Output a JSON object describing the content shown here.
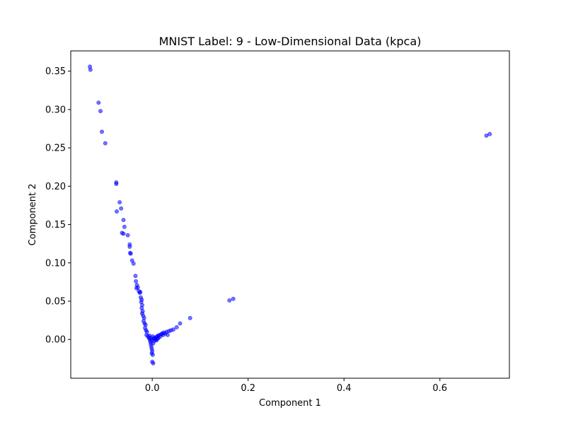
{
  "chart_data": {
    "type": "scatter",
    "title": "MNIST Label: 9 - Low-Dimensional Data (kpca)",
    "xlabel": "Component 1",
    "ylabel": "Component 2",
    "xlim": [
      -0.17,
      0.745
    ],
    "ylim": [
      -0.0505,
      0.3765
    ],
    "grid": false,
    "legend": "none",
    "x_ticks": [
      {
        "value": 0.0,
        "label": "0.0"
      },
      {
        "value": 0.2,
        "label": "0.2"
      },
      {
        "value": 0.4,
        "label": "0.4"
      },
      {
        "value": 0.6,
        "label": "0.6"
      }
    ],
    "y_ticks": [
      {
        "value": 0.0,
        "label": "0.00"
      },
      {
        "value": 0.05,
        "label": "0.05"
      },
      {
        "value": 0.1,
        "label": "0.10"
      },
      {
        "value": 0.15,
        "label": "0.15"
      },
      {
        "value": 0.2,
        "label": "0.20"
      },
      {
        "value": 0.25,
        "label": "0.25"
      },
      {
        "value": 0.3,
        "label": "0.30"
      },
      {
        "value": 0.35,
        "label": "0.35"
      }
    ],
    "point_color": "#0000ff",
    "point_alpha": 0.55,
    "series": [
      {
        "name": "points",
        "points": [
          [
            -0.13,
            0.356
          ],
          [
            -0.129,
            0.352
          ],
          [
            -0.112,
            0.309
          ],
          [
            -0.108,
            0.298
          ],
          [
            -0.105,
            0.271
          ],
          [
            -0.098,
            0.256
          ],
          [
            -0.075,
            0.205
          ],
          [
            -0.075,
            0.203
          ],
          [
            -0.068,
            0.179
          ],
          [
            -0.065,
            0.171
          ],
          [
            -0.074,
            0.167
          ],
          [
            -0.06,
            0.156
          ],
          [
            -0.058,
            0.147
          ],
          [
            -0.063,
            0.139
          ],
          [
            -0.06,
            0.138
          ],
          [
            -0.051,
            0.136
          ],
          [
            -0.047,
            0.124
          ],
          [
            -0.047,
            0.121
          ],
          [
            -0.046,
            0.113
          ],
          [
            -0.045,
            0.112
          ],
          [
            -0.042,
            0.103
          ],
          [
            -0.039,
            0.099
          ],
          [
            -0.035,
            0.083
          ],
          [
            -0.034,
            0.076
          ],
          [
            -0.032,
            0.071
          ],
          [
            -0.033,
            0.067
          ],
          [
            -0.03,
            0.068
          ],
          [
            -0.028,
            0.063
          ],
          [
            -0.026,
            0.061
          ],
          [
            -0.025,
            0.062
          ],
          [
            -0.024,
            0.055
          ],
          [
            -0.022,
            0.052
          ],
          [
            -0.023,
            0.049
          ],
          [
            -0.021,
            0.045
          ],
          [
            -0.022,
            0.041
          ],
          [
            -0.02,
            0.037
          ],
          [
            -0.021,
            0.034
          ],
          [
            -0.019,
            0.031
          ],
          [
            -0.017,
            0.028
          ],
          [
            -0.018,
            0.024
          ],
          [
            -0.016,
            0.021
          ],
          [
            -0.014,
            0.019
          ],
          [
            -0.015,
            0.015
          ],
          [
            -0.013,
            0.012
          ],
          [
            -0.011,
            0.01
          ],
          [
            -0.012,
            0.006
          ],
          [
            -0.009,
            0.004
          ],
          [
            -0.007,
            0.002
          ],
          [
            -0.005,
            0.0
          ],
          [
            -0.004,
            -0.003
          ],
          [
            -0.003,
            -0.006
          ],
          [
            -0.002,
            -0.009
          ],
          [
            -0.001,
            -0.012
          ],
          [
            0.0,
            -0.015
          ],
          [
            -0.001,
            -0.018
          ],
          [
            0.001,
            -0.02
          ],
          [
            0.0,
            -0.029
          ],
          [
            0.002,
            -0.031
          ],
          [
            -0.006,
            0.005
          ],
          [
            -0.003,
            0.002
          ],
          [
            0.001,
            0.004
          ],
          [
            0.004,
            0.002
          ],
          [
            0.006,
            0.001
          ],
          [
            0.008,
            0.003
          ],
          [
            0.01,
            0.004
          ],
          [
            0.012,
            0.005
          ],
          [
            0.013,
            0.002
          ],
          [
            0.015,
            0.006
          ],
          [
            0.017,
            0.004
          ],
          [
            0.019,
            0.007
          ],
          [
            0.021,
            0.008
          ],
          [
            0.023,
            0.006
          ],
          [
            0.024,
            0.009
          ],
          [
            0.027,
            0.008
          ],
          [
            0.03,
            0.01
          ],
          [
            0.032,
            0.006
          ],
          [
            0.035,
            0.011
          ],
          [
            0.039,
            0.012
          ],
          [
            0.044,
            0.013
          ],
          [
            0.051,
            0.016
          ],
          [
            0.058,
            0.021
          ],
          [
            0.079,
            0.028
          ],
          [
            0.007,
            0.0
          ],
          [
            0.004,
            -0.002
          ],
          [
            0.002,
            -0.005
          ],
          [
            0.009,
            -0.001
          ],
          [
            0.011,
            0.001
          ],
          [
            -0.002,
            -0.001
          ],
          [
            0.003,
            0.001
          ],
          [
            0.161,
            0.051
          ],
          [
            0.169,
            0.053
          ],
          [
            0.697,
            0.266
          ],
          [
            0.704,
            0.268
          ]
        ]
      }
    ]
  }
}
